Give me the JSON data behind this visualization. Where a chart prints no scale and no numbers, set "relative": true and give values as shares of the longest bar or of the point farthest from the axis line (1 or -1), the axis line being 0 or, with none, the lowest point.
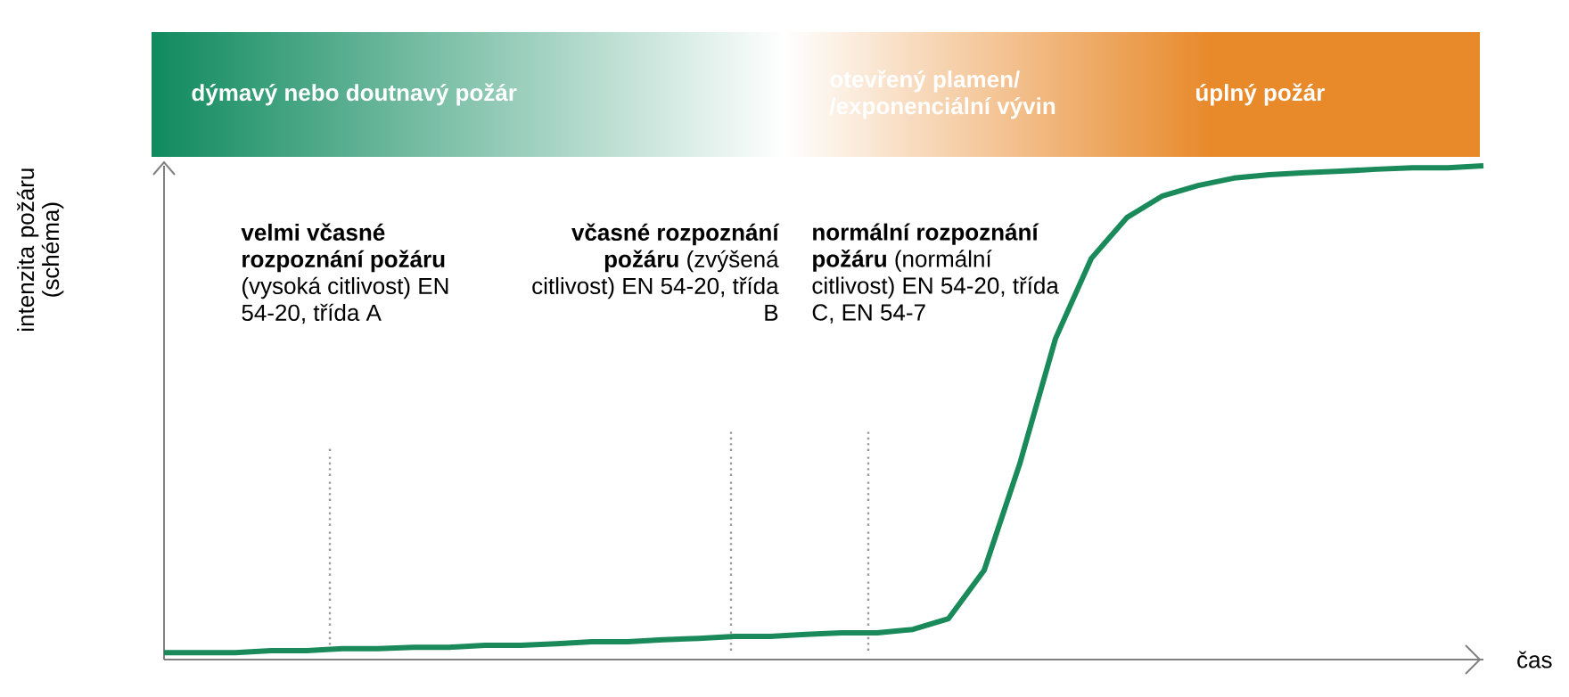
{
  "chart_data": {
    "type": "line",
    "relative": true,
    "xlabel": "čas",
    "ylabel": "intenzita požáru (schéma)",
    "color": "#1a8a5a",
    "categories": [
      null,
      null,
      null,
      null,
      null,
      null,
      null,
      null,
      null,
      null,
      null,
      null,
      null,
      null,
      null,
      null,
      null,
      null,
      null,
      null,
      null,
      null,
      null,
      null,
      null,
      null,
      null,
      null,
      null,
      null,
      null,
      null,
      null,
      null,
      null,
      null,
      null,
      null
    ],
    "values": [
      0.014,
      0.014,
      0.014,
      0.018,
      0.018,
      0.022,
      0.022,
      0.025,
      0.025,
      0.029,
      0.029,
      0.032,
      0.036,
      0.036,
      0.04,
      0.043,
      0.047,
      0.047,
      0.051,
      0.054,
      0.054,
      0.061,
      0.083,
      0.181,
      0.397,
      0.65,
      0.812,
      0.895,
      0.939,
      0.96,
      0.975,
      0.982,
      0.986,
      0.989,
      0.993,
      0.996,
      0.996,
      1.0
    ],
    "annotations": [
      "dýmavý nebo doutnavý požár",
      "otevřený plamen/ /exponenciální vývin",
      "úplný požár",
      "**velmi včasné rozpoznání požáru** (vysoká citlivost) EN 54-20, třída A",
      "**včasné rozpoznání požáru** (zvýšená citlivost) EN 54-20, třída B",
      "**normální rozpoznání požáru** (normální citlivost) EN 54-20, třída C, EN 54-7"
    ]
  }
}
